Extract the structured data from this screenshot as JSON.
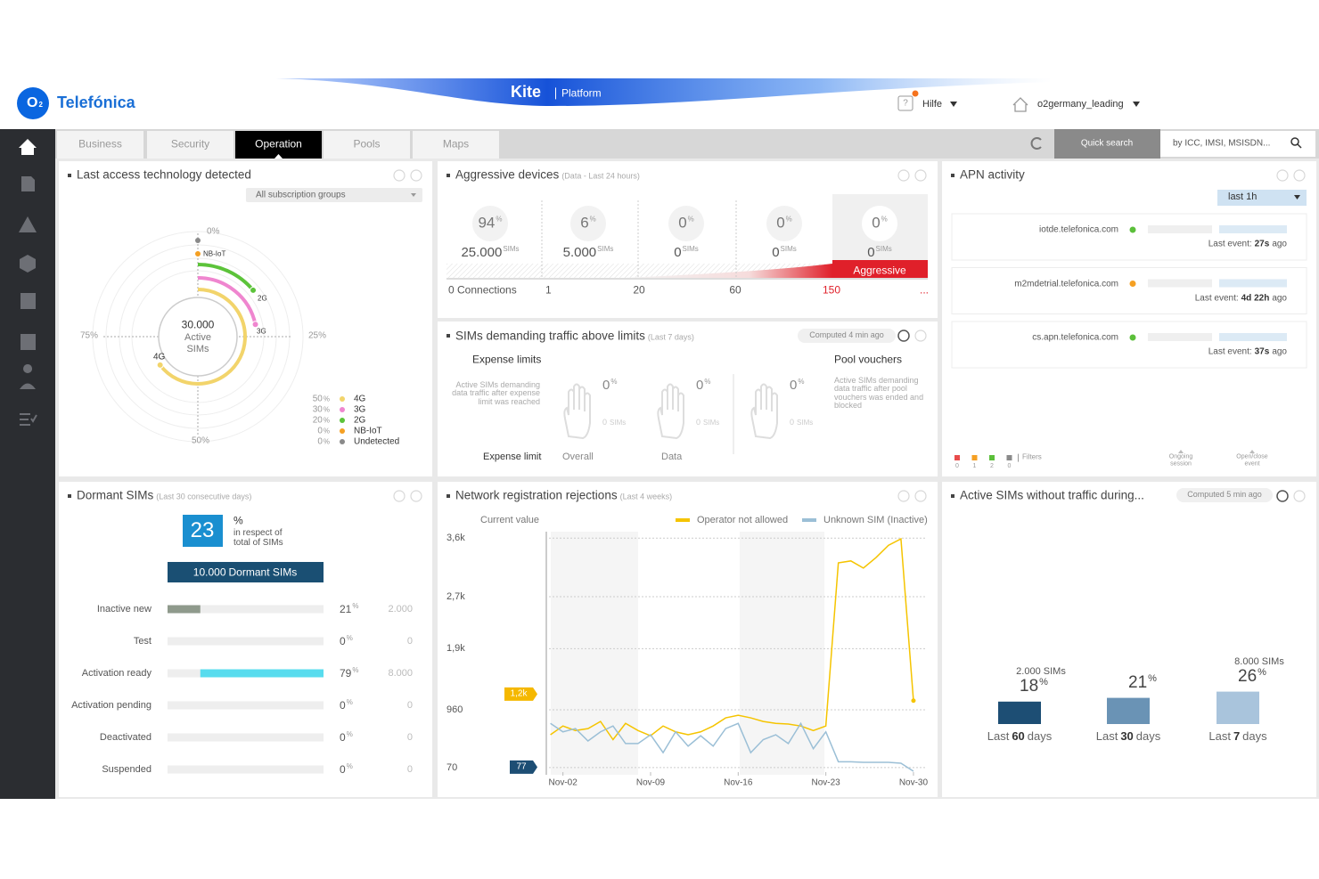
{
  "header": {
    "logo_letter": "O",
    "logo_sub": "2",
    "brand": "Telefónica",
    "product": "Kite",
    "product_sub": "Platform",
    "help_icon": "?",
    "help": "Hilfe",
    "user": "o2germany_leading"
  },
  "tabs": {
    "items": [
      "Business",
      "Security",
      "Operation",
      "Pools",
      "Maps"
    ],
    "active": 2
  },
  "search": {
    "button": "Quick search",
    "placeholder": "by ICC, IMSI, MSISDN..."
  },
  "access_technology": {
    "title": "Last access technology detected",
    "filter": "All subscription groups",
    "total": "30.000",
    "total_label": "Active SIMs",
    "axis": [
      "0%",
      "25%",
      "50%",
      "75%"
    ],
    "arc_labels": [
      "NB-IoT",
      "2G",
      "3G",
      "4G"
    ],
    "unit": "%",
    "legend": [
      {
        "value": "50",
        "name": "4G",
        "color": "#f2d46b"
      },
      {
        "value": "30",
        "name": "3G",
        "color": "#ef86cf"
      },
      {
        "value": "20",
        "name": "2G",
        "color": "#5cc33a"
      },
      {
        "value": "0",
        "name": "NB-IoT",
        "color": "#f5a023"
      },
      {
        "value": "0",
        "name": "Undetected",
        "color": "#8a8a8a"
      }
    ]
  },
  "aggressive_devices": {
    "title": "Aggressive devices",
    "subtitle": "(Data - Last 24 hours)",
    "pct_unit": "%",
    "count_unit": "SIMs",
    "columns": [
      {
        "pct": "94",
        "count": "25.000"
      },
      {
        "pct": "6",
        "count": "5.000"
      },
      {
        "pct": "0",
        "count": "0"
      },
      {
        "pct": "0",
        "count": "0"
      },
      {
        "pct": "0",
        "count": "0"
      }
    ],
    "axis": [
      "0 Connections",
      "1",
      "20",
      "60",
      "150",
      "..."
    ],
    "badge": "Aggressive"
  },
  "limits": {
    "title": "SIMs demanding traffic above limits",
    "subtitle": "(Last 7 days)",
    "computed": "Computed 4 min ago",
    "expense": {
      "title": "Expense limits",
      "description": "Active SIMs demanding data traffic after expense limit was reached"
    },
    "pool": {
      "title": "Pool vouchers",
      "description": "Active SIMs demanding data traffic after pool vouchers was ended and blocked"
    },
    "pct_unit": "%",
    "count_unit": "SIMs",
    "gauges": [
      {
        "pct": "0",
        "count": "0"
      },
      {
        "pct": "0",
        "count": "0"
      },
      {
        "pct": "0",
        "count": "0"
      }
    ],
    "footer": [
      "Expense limit",
      "Overall",
      "Data"
    ]
  },
  "apn": {
    "title": "APN activity",
    "period": "last 1h",
    "rows": [
      {
        "domain": "iotde.telefonica.com",
        "status": "#5bbf3a",
        "prefix": "Last event:",
        "age": "27s",
        "suffix": "ago"
      },
      {
        "domain": "m2mdetrial.telefonica.com",
        "status": "#f5a023",
        "prefix": "Last event:",
        "age": "4d 22h",
        "suffix": "ago"
      },
      {
        "domain": "cs.apn.telefonica.com",
        "status": "#5bbf3a",
        "prefix": "Last event:",
        "age": "37s",
        "suffix": "ago"
      }
    ],
    "filters": {
      "counts": [
        "0",
        "1",
        "2",
        "0"
      ],
      "colors": [
        "#e84c4c",
        "#f5a023",
        "#5bbf3a",
        "#8a8a8a"
      ],
      "label": "Filters"
    },
    "legend": [
      "Ongoing session",
      "Open/close event"
    ]
  },
  "dormant": {
    "title": "Dormant SIMs",
    "subtitle": "(Last 30 consecutive days)",
    "share": "23",
    "unit": "%",
    "share_note": "in respect of total of SIMs",
    "total": "10.000",
    "total_label": "Dormant SIMs",
    "rows": [
      {
        "label": "Inactive new",
        "pct": 21,
        "count": "2.000",
        "color": "#8f9a8c"
      },
      {
        "label": "Test",
        "pct": 0,
        "count": "0",
        "color": "#8f9a8c"
      },
      {
        "label": "Activation ready",
        "pct": 79,
        "count": "8.000",
        "color": "#58dcee"
      },
      {
        "label": "Activation pending",
        "pct": 0,
        "count": "0",
        "color": "#8f9a8c"
      },
      {
        "label": "Deactivated",
        "pct": 0,
        "count": "0",
        "color": "#8f9a8c"
      },
      {
        "label": "Suspended",
        "pct": 0,
        "count": "0",
        "color": "#8f9a8c"
      }
    ]
  },
  "rejections": {
    "title": "Network registration rejections",
    "subtitle": "(Last 4 weeks)",
    "current_label": "Current value",
    "current": [
      {
        "value": 1200,
        "label": "1,2k",
        "color": "#f5b800"
      },
      {
        "value": 77,
        "label": "77",
        "color": "#1d4e74"
      }
    ],
    "chart": {
      "type": "line",
      "x": [
        1,
        2,
        3,
        4,
        5,
        6,
        7,
        8,
        9,
        10,
        11,
        12,
        13,
        14,
        15,
        16,
        17,
        18,
        19,
        20,
        21,
        22,
        23,
        24,
        25,
        26,
        27,
        28,
        29,
        30
      ],
      "series": [
        {
          "name": "Operator not allowed",
          "color": "#f5c400",
          "values": [
            575,
            710,
            640,
            670,
            780,
            500,
            750,
            640,
            560,
            710,
            620,
            575,
            620,
            710,
            835,
            875,
            835,
            780,
            750,
            740,
            710,
            640,
            710,
            3220,
            3250,
            3140,
            3300,
            3490,
            3590,
            1100
          ]
        },
        {
          "name": "Unknown SIM (Inactive)",
          "color": "#9bbfd6",
          "values": [
            750,
            620,
            670,
            480,
            620,
            710,
            440,
            440,
            575,
            300,
            620,
            400,
            560,
            400,
            670,
            750,
            300,
            500,
            575,
            440,
            750,
            360,
            620,
            160,
            160,
            150,
            150,
            150,
            137,
            14
          ]
        }
      ],
      "xlim": [
        0.6,
        31
      ],
      "xticks": [
        {
          "value": 2,
          "label": "Nov-02"
        },
        {
          "value": 9,
          "label": "Nov-09"
        },
        {
          "value": 16,
          "label": "Nov-16"
        },
        {
          "value": 23,
          "label": "Nov-23"
        },
        {
          "value": 30,
          "label": "Nov-30"
        }
      ],
      "ylim": [
        0,
        3700
      ],
      "yticks": [
        70,
        960,
        {
          "value": 1900,
          "label": "1,9k"
        },
        {
          "value": 2700,
          "label": "2,7k"
        },
        {
          "value": 3600,
          "label": "3,6k"
        }
      ],
      "grid": true
    }
  },
  "no_traffic": {
    "title": "Active SIMs without traffic during...",
    "computed": "Computed 5 min ago",
    "unit": "%",
    "bars": [
      {
        "prefix": "Last",
        "days": "60",
        "suffix": "days",
        "pct": 18,
        "sims": "2.000 SIMs",
        "color": "#1d4e74"
      },
      {
        "prefix": "Last",
        "days": "30",
        "suffix": "days",
        "pct": 21,
        "color": "#6a93b5"
      },
      {
        "prefix": "Last",
        "days": "7",
        "suffix": "days",
        "pct": 26,
        "sims": "8.000 SIMs",
        "color": "#a9c4dc"
      }
    ]
  }
}
